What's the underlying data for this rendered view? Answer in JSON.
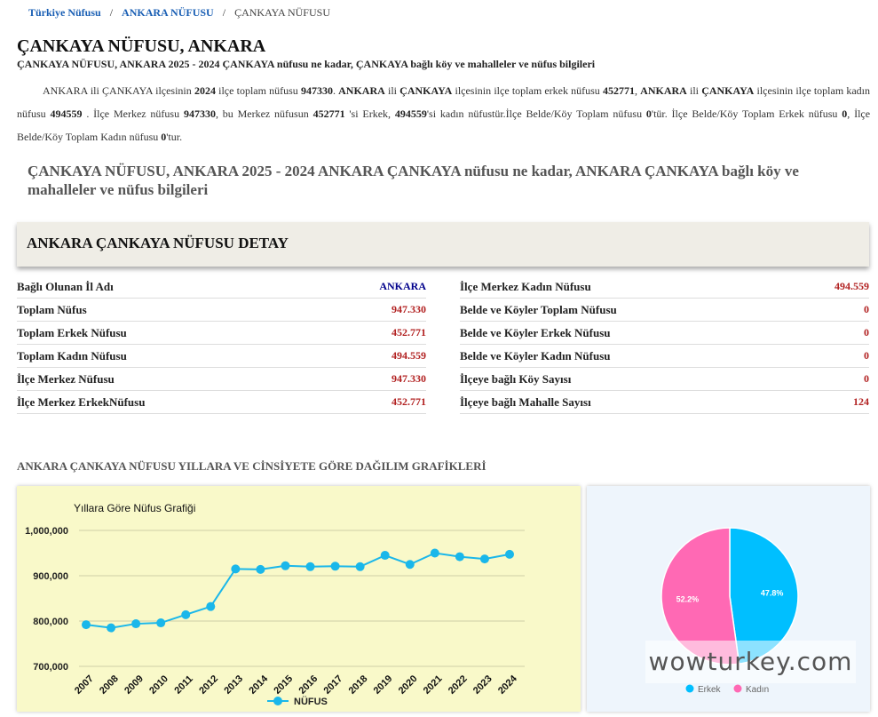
{
  "breadcrumb": {
    "home": "Türkiye Nüfusu",
    "province": "ANKARA NÜFUSU",
    "current": "ÇANKAYA NÜFUSU",
    "separator": "/"
  },
  "page": {
    "title": "ÇANKAYA NÜFUSU, ANKARA",
    "subtitle": "ÇANKAYA NÜFUSU, ANKARA 2025 - 2024 ÇANKAYA nüfusu ne kadar, ÇANKAYA bağlı köy ve mahalleler ve nüfus bilgileri",
    "section_heading": "ÇANKAYA NÜFUSU, ANKARA 2025 - 2024 ANKARA ÇANKAYA nüfusu ne kadar, ANKARA ÇANKAYA bağlı köy ve mahalleler ve nüfus bilgileri"
  },
  "intro": {
    "province": "ANKARA",
    "district": "ÇANKAYA",
    "year": "2024",
    "total": "947330",
    "male": "452771",
    "female": "494559",
    "center_total": "947330",
    "belde_total": "0",
    "belde_male": "0",
    "belde_female": "0",
    "t1": "ili",
    "t2": "ilçesinin",
    "t3": "ilçe toplam nüfusu",
    "t4": ".",
    "t5": "ilçe toplam erkek nüfusu",
    "t6": ",",
    "t7": "ilçe toplam kadın nüfusu",
    "t8": ". İlçe Merkez nüfusu",
    "t9": ", bu Merkez nüfusun",
    "t10": "'si Erkek,",
    "t11": "'si kadın nüfustür.İlçe Belde/Köy Toplam nüfusu",
    "t12": "'tür. İlçe Belde/Köy Toplam Erkek nüfusu",
    "t13": ", İlçe Belde/Köy Toplam Kadın nüfusu",
    "t14": "'tur."
  },
  "detail": {
    "title": "ANKARA ÇANKAYA NÜFUSU DETAY",
    "left": [
      {
        "label": "Bağlı Olunan İl Adı",
        "value": "ANKARA"
      },
      {
        "label": "Toplam Nüfus",
        "value": "947.330"
      },
      {
        "label": "Toplam Erkek Nüfusu",
        "value": "452.771"
      },
      {
        "label": "Toplam Kadın Nüfusu",
        "value": "494.559"
      },
      {
        "label": "İlçe Merkez Nüfusu",
        "value": "947.330"
      },
      {
        "label": "İlçe Merkez ErkekNüfusu",
        "value": "452.771"
      }
    ],
    "right": [
      {
        "label": "İlçe Merkez Kadın Nüfusu",
        "value": "494.559"
      },
      {
        "label": "Belde ve Köyler Toplam Nüfusu",
        "value": "0"
      },
      {
        "label": "Belde ve Köyler Erkek Nüfusu",
        "value": "0"
      },
      {
        "label": "Belde ve Köyler Kadın Nüfusu",
        "value": "0"
      },
      {
        "label": "İlçeye bağlı Köy Sayısı",
        "value": "0"
      },
      {
        "label": "İlçeye bağlı Mahalle Sayısı",
        "value": "124"
      }
    ]
  },
  "charts_heading": "ANKARA ÇANKAYA NÜFUSU YILLARA VE CİNSİYETE GÖRE DAĞILIM GRAFİKLERİ",
  "watermark": "wowturkey.com",
  "colors": {
    "link": "#1a5fb4",
    "value_red": "#b22222",
    "value_blue": "#00008b",
    "line": "#1ab7ea",
    "male": "#00bfff",
    "female": "#ff69b4"
  },
  "chart_data": [
    {
      "type": "line",
      "title": "Yıllara Göre Nüfus Grafiği",
      "x": [
        "2007",
        "2008",
        "2009",
        "2010",
        "2011",
        "2012",
        "2013",
        "2014",
        "2015",
        "2016",
        "2017",
        "2018",
        "2019",
        "2020",
        "2021",
        "2022",
        "2023",
        "2024"
      ],
      "series": [
        {
          "name": "NÜFUS",
          "values": [
            792000,
            785000,
            794000,
            796000,
            814000,
            832000,
            915000,
            914000,
            922000,
            920000,
            921000,
            920000,
            945000,
            925000,
            950000,
            942000,
            937000,
            947330
          ]
        }
      ],
      "yticks": [
        "700,000",
        "800,000",
        "900,000",
        "1,000,000"
      ],
      "ylim": [
        700000,
        1000000
      ],
      "grid": true,
      "legend": "bottom"
    },
    {
      "type": "pie",
      "labels": [
        "Erkek",
        "Kadın"
      ],
      "values": [
        47.8,
        52.2
      ],
      "value_labels": [
        "47.8%",
        "52.2%"
      ],
      "legend": "bottom"
    }
  ]
}
